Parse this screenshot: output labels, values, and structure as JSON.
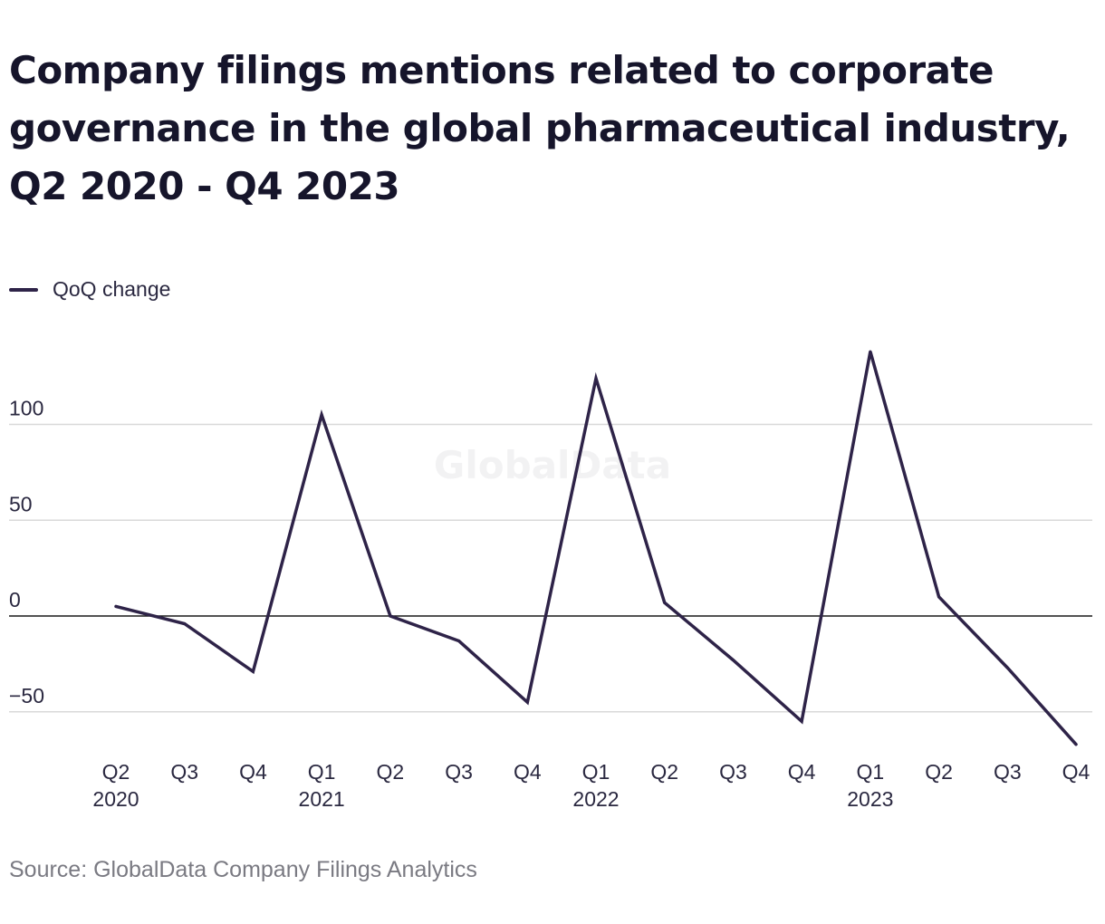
{
  "title": "Company filings mentions related to corporate governance in the global pharmaceutical industry, Q2 2020 - Q4 2023",
  "source": "Source: GlobalData Company Filings Analytics",
  "watermark": "GlobalData",
  "colors": {
    "line": "#2e2348",
    "grid": "#d9d9d9",
    "zero": "#1a1a1a",
    "text": "#2a2840"
  },
  "chart_data": {
    "type": "line",
    "title": "Company filings mentions related to corporate governance in the global pharmaceutical industry, Q2 2020 - Q4 2023",
    "categories": [
      "Q2",
      "Q3",
      "Q4",
      "Q1",
      "Q2",
      "Q3",
      "Q4",
      "Q1",
      "Q2",
      "Q3",
      "Q4",
      "Q1",
      "Q2",
      "Q3",
      "Q4"
    ],
    "year_labels": [
      "2020",
      "",
      "",
      "2021",
      "",
      "",
      "",
      "2022",
      "",
      "",
      "",
      "2023",
      "",
      "",
      ""
    ],
    "series": [
      {
        "name": "QoQ change",
        "values": [
          5,
          -4,
          -29,
          105,
          0,
          -13,
          -45,
          124,
          7,
          -23,
          -55,
          138,
          10,
          -27,
          -67
        ]
      }
    ],
    "yticks": [
      -50,
      0,
      50,
      100
    ],
    "ylim": [
      -70,
      140
    ],
    "grid": true,
    "legend": "top-left",
    "xlabel": "",
    "ylabel": ""
  }
}
